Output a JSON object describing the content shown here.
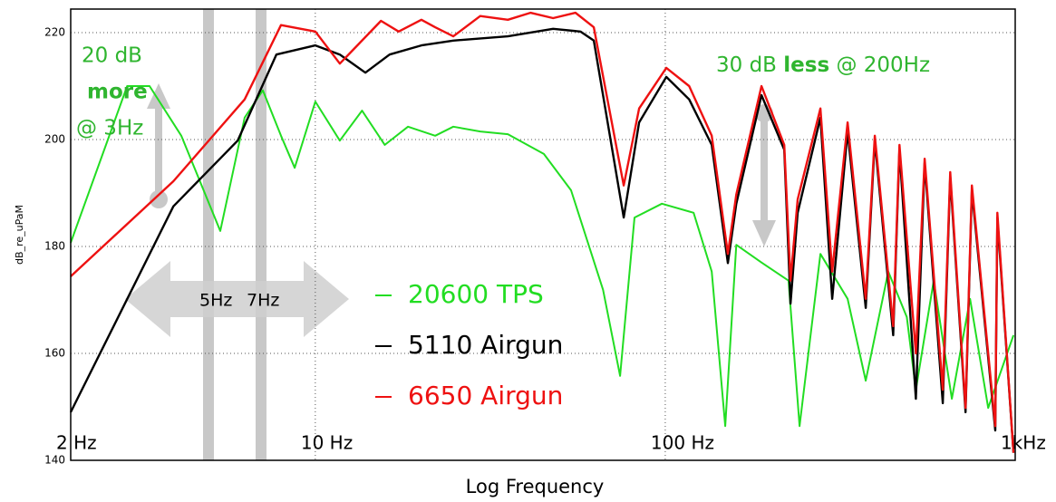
{
  "chart_data": {
    "type": "line",
    "x_label": "Log Frequency",
    "y_label": "dB_re_uPaM",
    "xscale": "log",
    "grid": true,
    "xlim": [
      2,
      1000
    ],
    "ylim": [
      140,
      224.4
    ],
    "xticks": [
      {
        "value": 2,
        "label": "2 Hz"
      },
      {
        "value": 10,
        "label": "10 Hz"
      },
      {
        "value": 100,
        "label": "100 Hz"
      },
      {
        "value": 1000,
        "label": "1kHz"
      }
    ],
    "yticks": [
      140,
      160,
      180,
      200,
      220
    ],
    "annotations": [
      "20 dB",
      "more",
      "@ 3Hz",
      "30 dB",
      "less",
      "@ 200Hz",
      "5Hz",
      "7Hz"
    ],
    "series": [
      {
        "name": "20600 TPS",
        "color": "#22dd22",
        "x": [
          2,
          2.9,
          3.36,
          4.14,
          5.35,
          6.28,
          7.08,
          7.98,
          8.73,
          10,
          11.75,
          13.6,
          15.8,
          18.4,
          22,
          24.8,
          29.6,
          35.5,
          45,
          53.8,
          66.4,
          74.3,
          81.7,
          97.8,
          120.5,
          135.8,
          148.4,
          159.6,
          188.4,
          225,
          242,
          277.6,
          332,
          374,
          434,
          490,
          520,
          585,
          659,
          743,
          837,
          989
        ],
        "values": [
          180.7,
          210,
          210,
          200.7,
          182.9,
          204.1,
          209.2,
          200.7,
          194.7,
          207.1,
          199.8,
          205.4,
          199,
          202.4,
          200.7,
          202.4,
          201.5,
          201,
          197.3,
          190.5,
          171.9,
          155.8,
          185.4,
          188,
          186.3,
          175.3,
          146.4,
          180.3,
          177,
          173.6,
          146.4,
          178.6,
          170.2,
          154.9,
          175.3,
          166.8,
          153.2,
          173.6,
          151.5,
          170.2,
          149.8,
          163.4
        ]
      },
      {
        "name": "5110 Airgun",
        "color": "#000000",
        "x": [
          2,
          3.93,
          6,
          7.74,
          10,
          11.75,
          13.9,
          16.3,
          20.1,
          24.8,
          35.5,
          47.8,
          57.2,
          62.5,
          76.1,
          84.2,
          100.7,
          117,
          135.8,
          151,
          159.6,
          188.4,
          218.8,
          228,
          239,
          277.6,
          300,
          332,
          374,
          397,
          448,
          467,
          520,
          551,
          621,
          652,
          721,
          752,
          877,
          889,
          989
        ],
        "values": [
          149,
          187.5,
          199.8,
          215.9,
          217.6,
          215.9,
          212.5,
          215.9,
          217.6,
          218.5,
          219.3,
          220.7,
          220.2,
          218.5,
          185.4,
          203.2,
          211.7,
          207.5,
          199,
          176.9,
          188,
          208.3,
          198.1,
          169.3,
          186.3,
          204.1,
          170.2,
          201.5,
          168.5,
          199.8,
          163.4,
          198.1,
          151.5,
          195.6,
          150.7,
          193,
          149,
          190.5,
          145.6,
          185.4,
          141.4
        ]
      },
      {
        "name": "6650 Airgun",
        "color": "#ee1111",
        "x": [
          2,
          3.93,
          6.28,
          7.98,
          10,
          11.75,
          15.4,
          17.3,
          20.1,
          22,
          24.8,
          29.6,
          35.5,
          41.2,
          47.8,
          55.4,
          62.5,
          76.1,
          84.2,
          100.7,
          117,
          135.8,
          151,
          159.6,
          188.4,
          218.8,
          228,
          239,
          277.6,
          300,
          332,
          374,
          397,
          448,
          467,
          520,
          551,
          621,
          652,
          721,
          752,
          877,
          889,
          989
        ],
        "values": [
          174.4,
          192.2,
          207.5,
          221.4,
          220.2,
          214.2,
          222.2,
          220.2,
          222.4,
          221,
          219.3,
          223.1,
          222.4,
          223.7,
          222.7,
          223.7,
          221,
          191.4,
          205.8,
          213.4,
          210,
          200.7,
          178.6,
          189.7,
          210,
          199,
          173.6,
          188.8,
          205.8,
          175.3,
          203.2,
          170.2,
          200.7,
          165.1,
          199,
          160,
          196.4,
          153.2,
          193.9,
          149.8,
          191.4,
          146.4,
          186.3,
          141.4
        ]
      }
    ]
  }
}
